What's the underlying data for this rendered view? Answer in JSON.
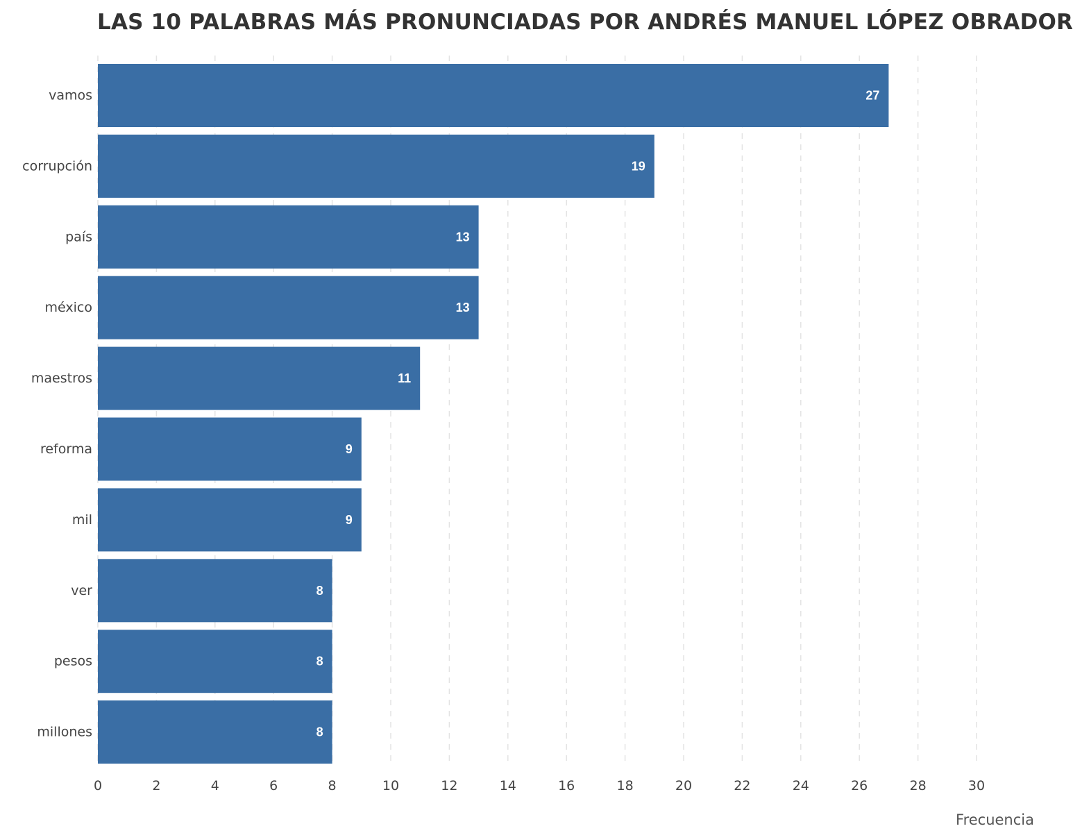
{
  "chart_data": {
    "type": "bar",
    "orientation": "horizontal",
    "title": "LAS 10 PALABRAS MÁS PRONUNCIADAS POR ANDRÉS MANUEL LÓPEZ OBRADOR",
    "xlabel": "Frecuencia",
    "ylabel": "",
    "categories": [
      "vamos",
      "corrupción",
      "país",
      "méxico",
      "maestros",
      "reforma",
      "mil",
      "ver",
      "pesos",
      "millones"
    ],
    "values": [
      27,
      19,
      13,
      13,
      11,
      9,
      9,
      8,
      8,
      8
    ],
    "xlim": [
      0,
      30
    ],
    "xticks": [
      0,
      2,
      4,
      6,
      8,
      10,
      12,
      14,
      16,
      18,
      20,
      22,
      24,
      26,
      28,
      30
    ],
    "grid": "vertical dashed",
    "bar_color": "#3a6ea5",
    "value_label_color": "#ffffff"
  }
}
